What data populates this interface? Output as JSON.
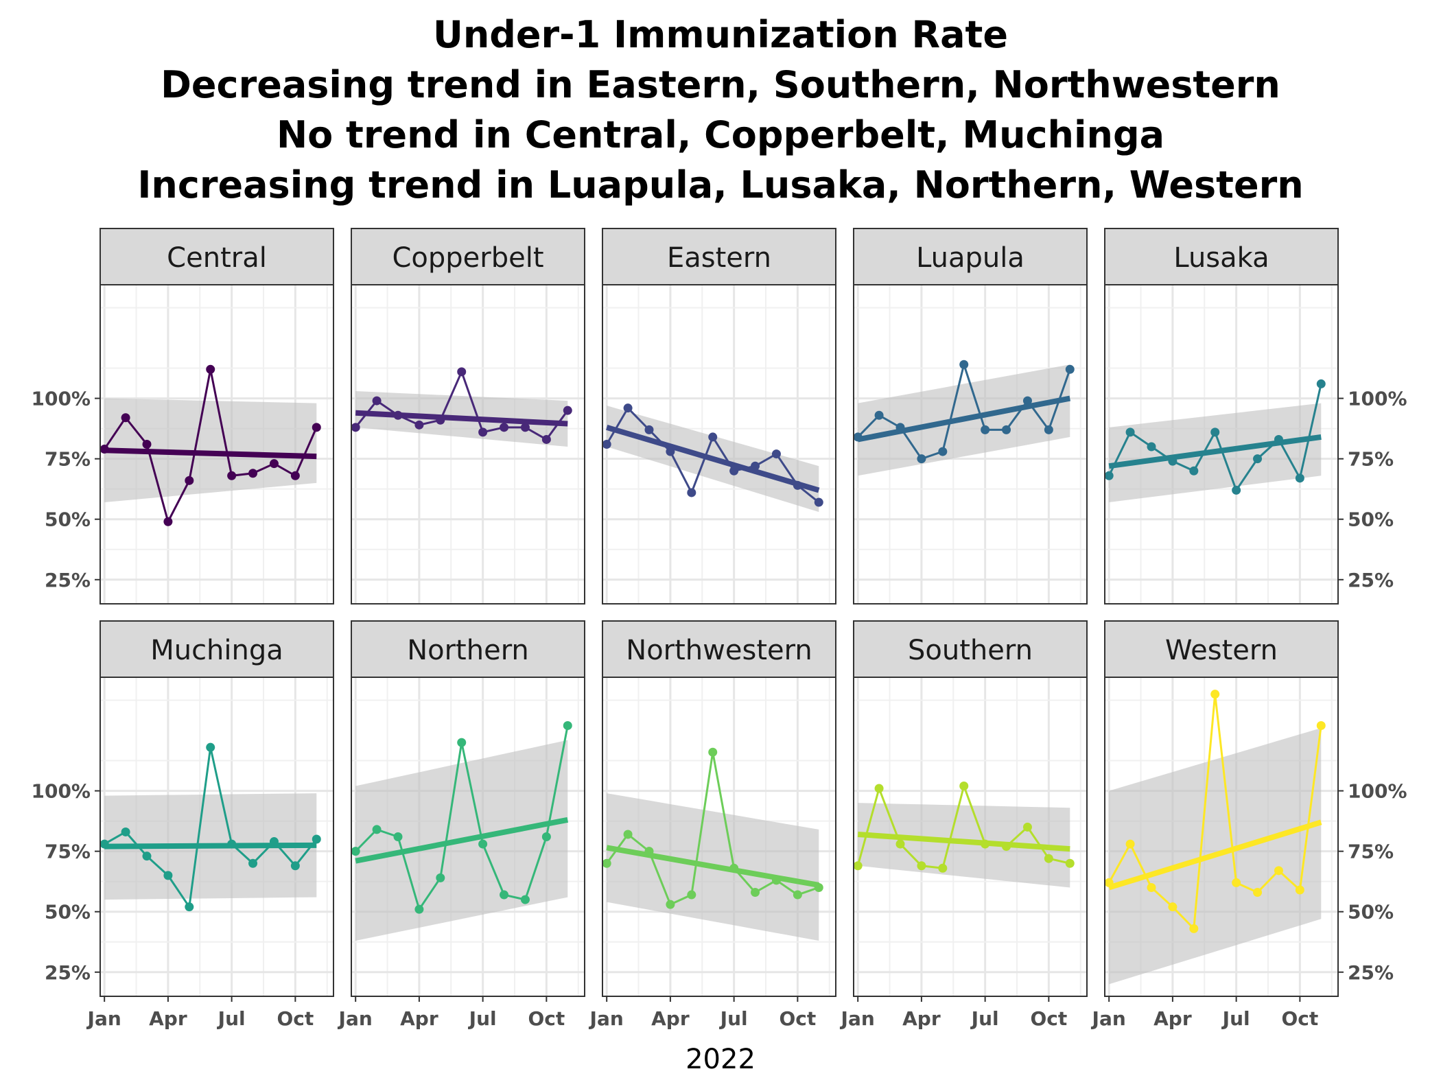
{
  "chart_data": {
    "type": "line",
    "title_lines": [
      "Under-1 Immunization Rate",
      "Decreasing trend in Eastern, Southern, Northwestern",
      "No trend in Central, Copperbelt, Muchinga",
      "Increasing trend in Luapula, Lusaka, Northern, Western"
    ],
    "xlabel": "2022",
    "ylabel": "",
    "x": [
      "2022-01",
      "2022-02",
      "2022-03",
      "2022-04",
      "2022-05",
      "2022-06",
      "2022-07",
      "2022-08",
      "2022-09",
      "2022-10",
      "2022-11"
    ],
    "x_tick_labels": [
      "Jan",
      "Apr",
      "Jul",
      "Oct"
    ],
    "x_tick_months": [
      1,
      4,
      7,
      10
    ],
    "xlim_months": [
      0.8,
      11.8
    ],
    "y_tick_labels": [
      "25%",
      "50%",
      "75%",
      "100%"
    ],
    "y_ticks": [
      25,
      50,
      75,
      100
    ],
    "ylim": [
      15,
      147
    ],
    "grid": true,
    "panel_rows": 2,
    "panel_cols": 5,
    "series": [
      {
        "name": "Central",
        "color": "#440154",
        "values": [
          79,
          92,
          81,
          49,
          66,
          112,
          68,
          69,
          73,
          68,
          88
        ],
        "trend": [
          78.5,
          76
        ],
        "band_low": [
          57,
          65
        ],
        "band_high": [
          100,
          98
        ]
      },
      {
        "name": "Copperbelt",
        "color": "#482878",
        "values": [
          88,
          99,
          93,
          89,
          91,
          111,
          86,
          88,
          88,
          83,
          95
        ],
        "trend": [
          94,
          89.5
        ],
        "band_low": [
          88,
          80
        ],
        "band_high": [
          103,
          99
        ]
      },
      {
        "name": "Eastern",
        "color": "#3E4A89",
        "values": [
          81,
          96,
          87,
          78,
          61,
          84,
          70,
          72,
          77,
          64,
          57
        ],
        "trend": [
          88,
          62
        ],
        "band_low": [
          80,
          53
        ],
        "band_high": [
          97,
          72
        ]
      },
      {
        "name": "Luapula",
        "color": "#31688E",
        "values": [
          84,
          93,
          88,
          75,
          78,
          114,
          87,
          87,
          99,
          87,
          112
        ],
        "trend": [
          83,
          100
        ],
        "band_low": [
          68,
          84
        ],
        "band_high": [
          98,
          114
        ]
      },
      {
        "name": "Lusaka",
        "color": "#26828E",
        "values": [
          68,
          86,
          80,
          74,
          70,
          86,
          62,
          75,
          83,
          67,
          106
        ],
        "trend": [
          72,
          84
        ],
        "band_low": [
          57,
          68
        ],
        "band_high": [
          88,
          98
        ]
      },
      {
        "name": "Muchinga",
        "color": "#1F9E89",
        "values": [
          78,
          83,
          73,
          65,
          52,
          118,
          78,
          70,
          79,
          69,
          80
        ],
        "trend": [
          77,
          77.5
        ],
        "band_low": [
          55,
          56
        ],
        "band_high": [
          98,
          99
        ]
      },
      {
        "name": "Northern",
        "color": "#35B779",
        "values": [
          75,
          84,
          81,
          51,
          64,
          120,
          78,
          57,
          55,
          81,
          127
        ],
        "trend": [
          71,
          88
        ],
        "band_low": [
          38,
          56
        ],
        "band_high": [
          102,
          121
        ]
      },
      {
        "name": "Northwestern",
        "color": "#6DCD59",
        "values": [
          70,
          82,
          75,
          53,
          57,
          116,
          68,
          58,
          63,
          57,
          60
        ],
        "trend": [
          76.5,
          61
        ],
        "band_low": [
          54,
          38
        ],
        "band_high": [
          99,
          84
        ]
      },
      {
        "name": "Southern",
        "color": "#B4DE2C",
        "values": [
          69,
          101,
          78,
          69,
          68,
          102,
          78,
          77,
          85,
          72,
          70
        ],
        "trend": [
          82,
          76
        ],
        "band_low": [
          69,
          60
        ],
        "band_high": [
          95,
          93
        ]
      },
      {
        "name": "Western",
        "color": "#FDE725",
        "values": [
          62,
          78,
          60,
          52,
          43,
          140,
          62,
          58,
          67,
          59,
          127
        ],
        "trend": [
          60,
          87
        ],
        "band_low": [
          20,
          47
        ],
        "band_high": [
          100,
          126
        ]
      }
    ]
  }
}
